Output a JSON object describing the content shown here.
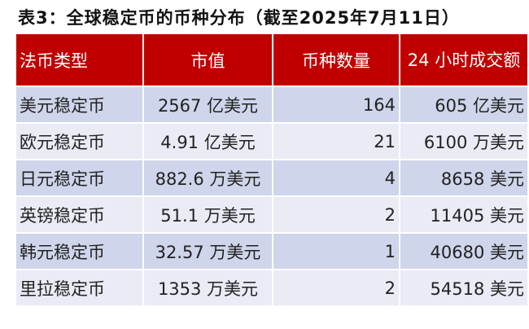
{
  "title": "表3：全球稳定币的币种分布（截至2025年7月11日）",
  "headers": [
    "法币类型",
    "市值",
    "币种数量",
    "24 小时成交额"
  ],
  "rows": [
    [
      "美元稳定币",
      "2567 亿美元",
      "164",
      "605 亿美元"
    ],
    [
      "欧元稳定币",
      "4.91 亿美元",
      "21",
      "6100 万美元"
    ],
    [
      "日元稳定币",
      "882.6 万美元",
      "4",
      "8658 美元"
    ],
    [
      "英镑稳定币",
      "51.1 万美元",
      "2",
      "11405 美元"
    ],
    [
      "韩元稳定币",
      "32.57 万美元",
      "1",
      "40680 美元"
    ],
    [
      "里拉稳定币",
      "1353 万美元",
      "2",
      "54518 美元"
    ]
  ],
  "colors": {
    "header": "#c00000",
    "row_odd": "#cfd5ea",
    "row_even": "#e9ebf5"
  }
}
